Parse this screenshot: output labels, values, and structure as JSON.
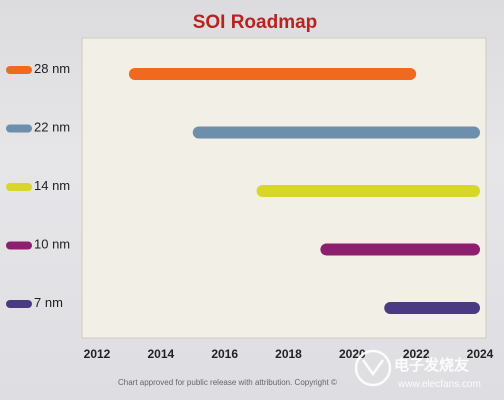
{
  "chart_data": {
    "type": "bar",
    "orientation": "horizontal-timeline",
    "title": "SOI Roadmap",
    "x_ticks": [
      "2012",
      "2014",
      "2016",
      "2018",
      "2020",
      "2022",
      "2024"
    ],
    "xlim": [
      2012,
      2024
    ],
    "grid": false,
    "legend_position": "left",
    "series": [
      {
        "name": "28 nm",
        "start": 2013,
        "end": 2022,
        "color": "#ef6a1f"
      },
      {
        "name": "22 nm",
        "start": 2015,
        "end": 2024,
        "color": "#6d8fab"
      },
      {
        "name": "14 nm",
        "start": 2017,
        "end": 2024,
        "color": "#d9d62a"
      },
      {
        "name": "10 nm",
        "start": 2019,
        "end": 2024,
        "color": "#8e1f6e"
      },
      {
        "name": "7 nm",
        "start": 2021,
        "end": 2024,
        "color": "#4a3a82"
      }
    ],
    "footnote": "Chart approved for public release with attribution. Copyright ©"
  },
  "colors": {
    "title": "#b8231f",
    "plot_background": "#f1efe6"
  },
  "watermark": {
    "text_main": "电子发烧友",
    "text_url": "www.elecfans.com"
  }
}
